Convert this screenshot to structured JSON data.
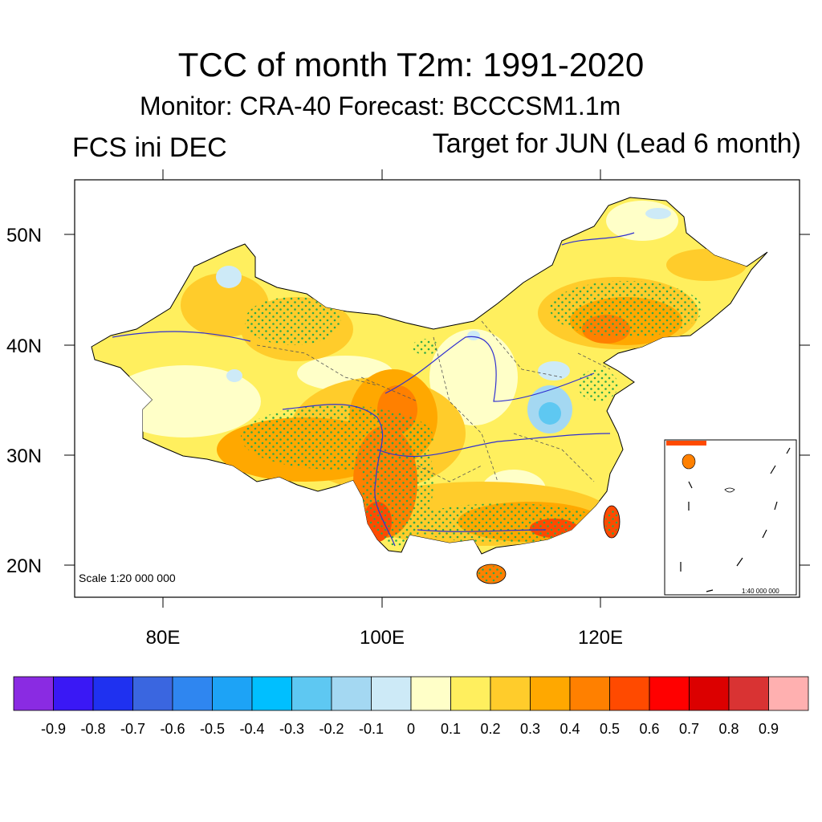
{
  "title": "TCC of month T2m: 1991-2020",
  "subtitle": "Monitor: CRA-40   Forecast: BCCCSM1.1m",
  "left_label": "FCS ini DEC",
  "right_label": "Target for JUN (Lead 6 month)",
  "scale_label": "Scale 1:20 000 000",
  "inset_scale_label": "1:40 000 000",
  "lat_ticks": [
    "50N",
    "40N",
    "30N",
    "20N"
  ],
  "lon_ticks": [
    "80E",
    "100E",
    "120E"
  ],
  "colorbar": {
    "colors": [
      "#8a2be2",
      "#3a18f5",
      "#1f31f0",
      "#3a66e0",
      "#2f86f0",
      "#1da3f6",
      "#00bfff",
      "#5ec8f2",
      "#a4d8f2",
      "#cdeaf7",
      "#ffffc8",
      "#ffef5e",
      "#ffcc2b",
      "#ffa800",
      "#ff8000",
      "#ff4a00",
      "#ff0000",
      "#dc0000",
      "#d93333",
      "#ffb0b0"
    ],
    "labels": [
      "-0.9",
      "-0.8",
      "-0.7",
      "-0.6",
      "-0.5",
      "-0.4",
      "-0.3",
      "-0.2",
      "-0.1",
      "0",
      "0.1",
      "0.2",
      "0.3",
      "0.4",
      "0.5",
      "0.6",
      "0.7",
      "0.8",
      "0.9"
    ]
  }
}
